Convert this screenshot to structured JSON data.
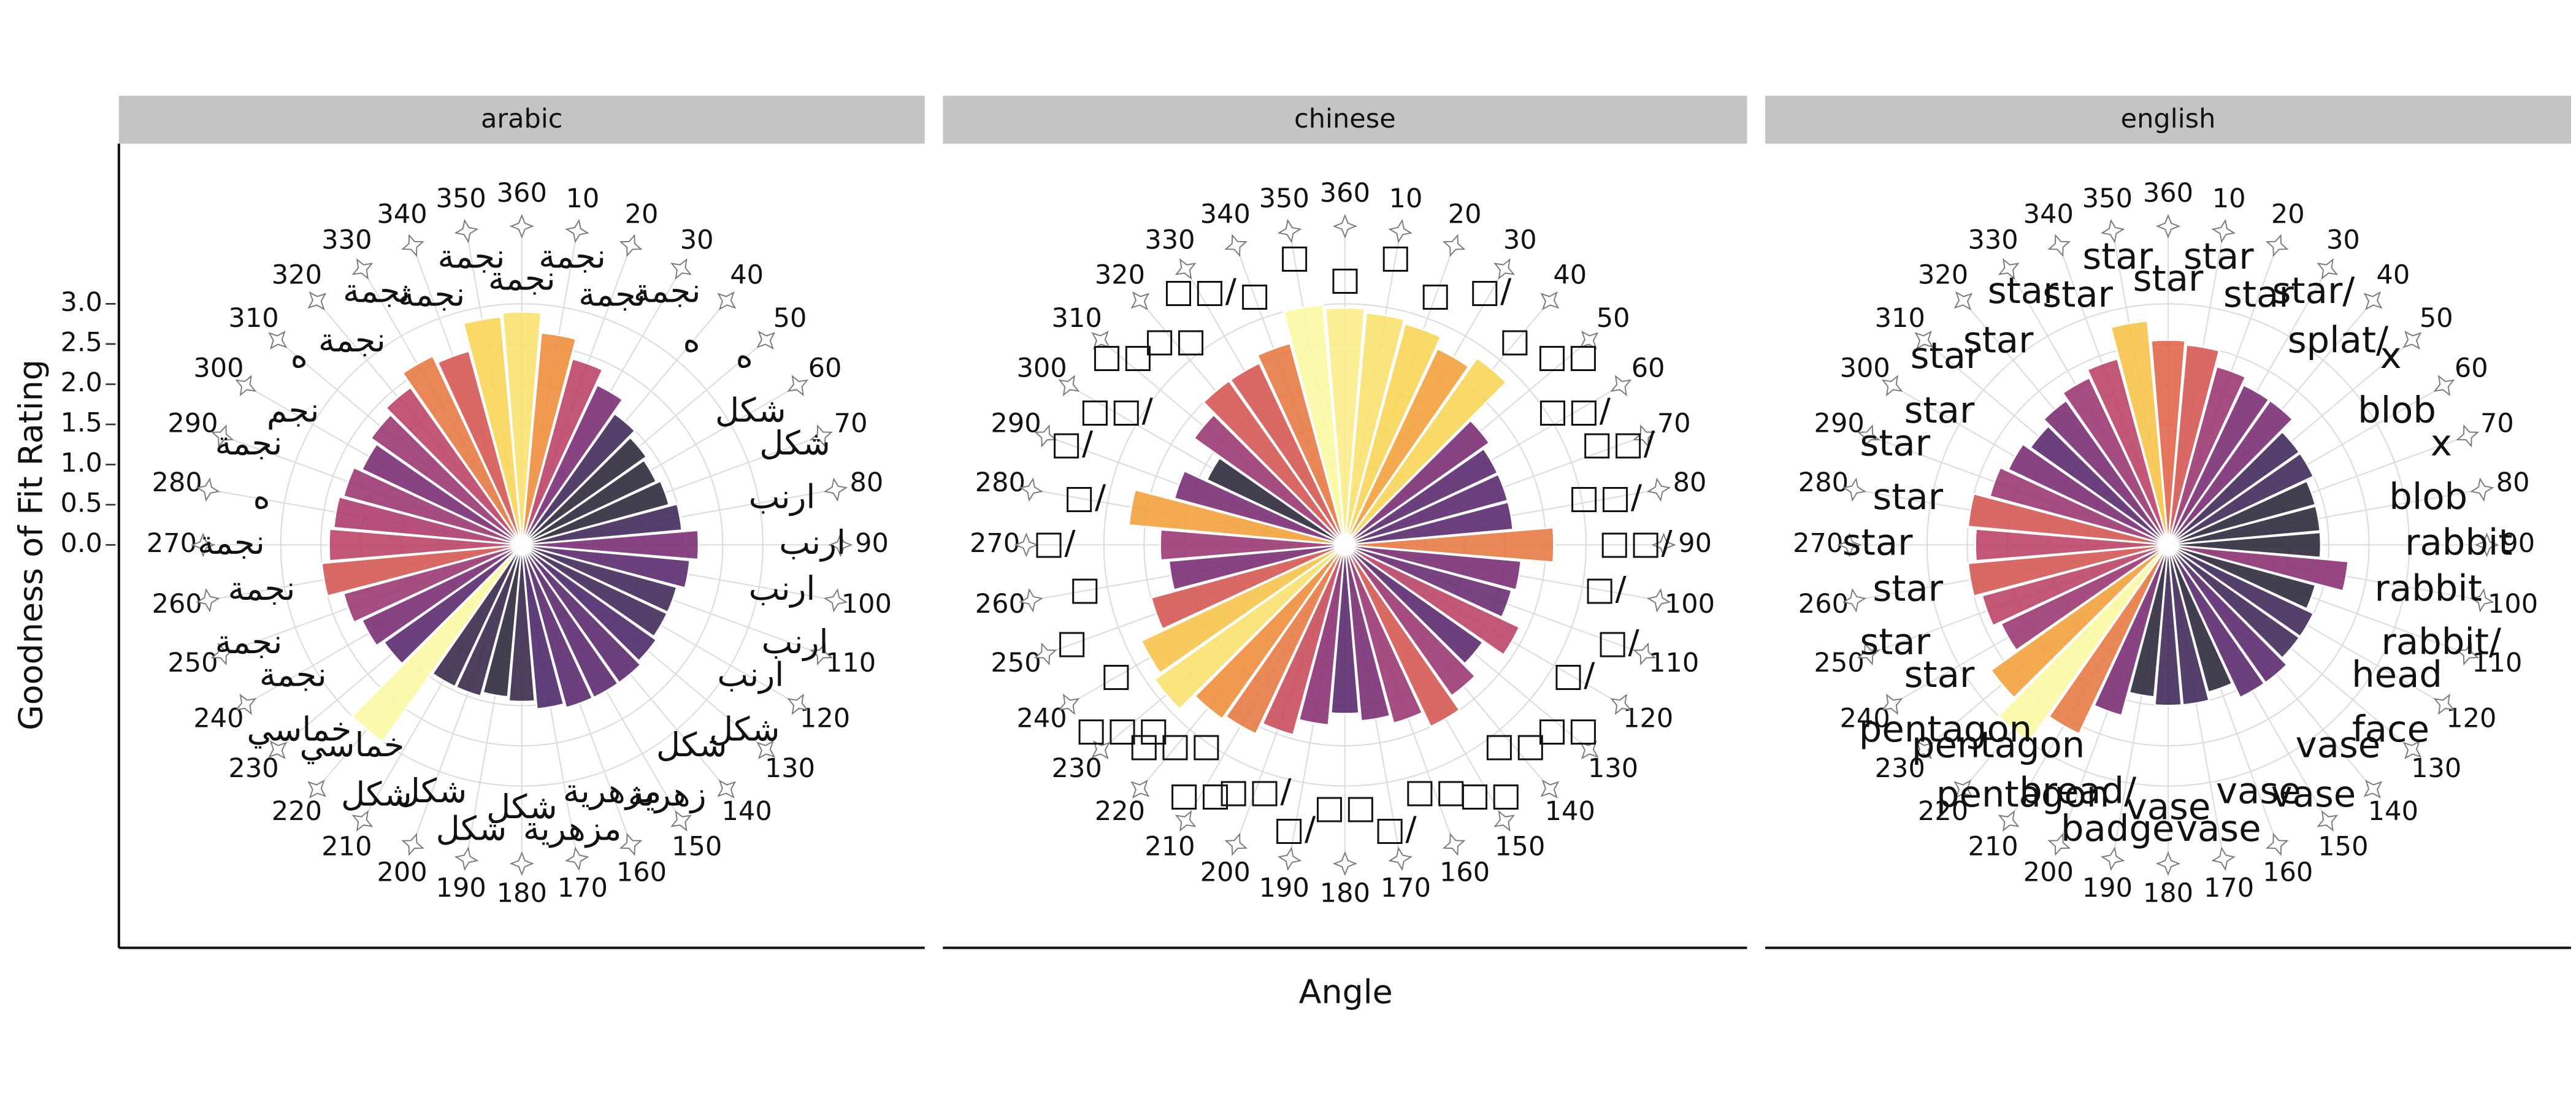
{
  "chart_data": {
    "type": "polar-bar",
    "y_label": "Goodness of Fit Rating",
    "x_label": "Angle",
    "ylim": [
      0,
      3
    ],
    "yticks": [
      {
        "value": 0,
        "label": "0.0"
      },
      {
        "value": 0.5,
        "label": "0.5"
      },
      {
        "value": 1,
        "label": "1.0"
      },
      {
        "value": 1.5,
        "label": "1.5"
      },
      {
        "value": 2,
        "label": "2.0"
      },
      {
        "value": 2.5,
        "label": "2.5"
      },
      {
        "value": 3,
        "label": "3.0"
      }
    ],
    "xlim": [
      0,
      360
    ],
    "xticks": [
      10,
      20,
      30,
      40,
      50,
      60,
      70,
      80,
      90,
      100,
      110,
      120,
      130,
      140,
      150,
      160,
      170,
      180,
      190,
      200,
      210,
      220,
      230,
      240,
      250,
      260,
      270,
      280,
      290,
      300,
      310,
      320,
      330,
      340,
      350,
      360
    ],
    "x": [
      10,
      20,
      30,
      40,
      50,
      60,
      70,
      80,
      90,
      100,
      110,
      120,
      130,
      140,
      150,
      160,
      170,
      180,
      190,
      200,
      210,
      220,
      230,
      240,
      250,
      260,
      270,
      280,
      290,
      300,
      310,
      320,
      330,
      340,
      350,
      360
    ],
    "grid": true,
    "color_domain": [
      1.9,
      3.0
    ],
    "color_stops": [
      "#2a2438",
      "#4a2468",
      "#7b2a73",
      "#b23a6a",
      "#dc5a48",
      "#f39a35",
      "#f8d24e",
      "#fbf8a0"
    ],
    "facets": [
      {
        "title": "arabic",
        "values": [
          2.65,
          2.4,
          2.2,
          2.0,
          1.9,
          1.85,
          1.9,
          2.0,
          2.2,
          2.1,
          2.0,
          2.0,
          2.05,
          2.1,
          2.1,
          2.1,
          2.05,
          1.95,
          1.9,
          1.95,
          1.95,
          3.0,
          2.1,
          2.2,
          2.3,
          2.5,
          2.4,
          2.35,
          2.3,
          2.2,
          2.3,
          2.4,
          2.6,
          2.5,
          2.85,
          2.9
        ],
        "labels": [
          "نجمة",
          "نجمة",
          "نجمة",
          "ه",
          "ه",
          "شكل",
          "شكل",
          "ارنب",
          "ارنب",
          "ارنب",
          "ارنب",
          "ارنب",
          "شكل",
          "شكل",
          "زهرية",
          "مزهرية",
          "مزهرية",
          "شكل",
          "شكل",
          "شكل",
          "شكل",
          "خماسي",
          "خماسي",
          "نجمة",
          "نجمة",
          "نجمة",
          "نجمة",
          "ه",
          "نجمة",
          "نجم",
          "ه",
          "نجمة",
          "نجمة",
          "نجمة",
          "نجمة",
          "نجمة"
        ]
      },
      {
        "title": "chinese",
        "values": [
          2.9,
          2.85,
          2.7,
          2.85,
          2.2,
          2.1,
          2.1,
          2.1,
          2.6,
          2.2,
          2.15,
          2.4,
          2.1,
          2.3,
          2.5,
          2.3,
          2.2,
          2.1,
          2.25,
          2.45,
          2.6,
          2.65,
          2.9,
          2.8,
          2.5,
          2.2,
          2.3,
          2.7,
          2.2,
          1.9,
          2.3,
          2.5,
          2.5,
          2.6,
          3.0,
          2.95
        ],
        "labels": [
          "□",
          "□",
          "□/",
          "□",
          "□□",
          "□□/",
          "□□/",
          "□□/",
          "□□/",
          "□/",
          "□/",
          "□/",
          "□□",
          "□□",
          "□□",
          "□□",
          "□/",
          "□□",
          "□/",
          "□□/",
          "□□",
          "□□□",
          "□□□",
          "□",
          "□",
          "□",
          "□/",
          "□/",
          "□/",
          "□□/",
          "□□",
          "□□",
          "□□/",
          "□",
          "□",
          "□"
        ]
      },
      {
        "title": "english",
        "values": [
          2.5,
          2.3,
          2.2,
          2.2,
          2.0,
          2.0,
          1.9,
          1.9,
          1.9,
          2.25,
          1.9,
          2.0,
          2.0,
          2.1,
          2.1,
          1.9,
          2.0,
          2.0,
          1.9,
          2.2,
          2.6,
          3.0,
          2.7,
          2.3,
          2.4,
          2.5,
          2.4,
          2.5,
          2.3,
          2.2,
          2.1,
          2.2,
          2.3,
          2.4,
          2.8,
          2.55
        ],
        "labels": [
          "star",
          "star",
          "star/",
          "splat/",
          "x",
          "blob",
          "x",
          "blob",
          "rabbit",
          "rabbit",
          "rabbit/",
          "head",
          "face",
          "vase",
          "vase",
          "vase",
          "vase",
          "vase",
          "badge",
          "bread/",
          "pentagon",
          "pentagon",
          "pentagon",
          "star",
          "star",
          "star",
          "star",
          "star",
          "star",
          "star",
          "star",
          "star",
          "star",
          "star",
          "star",
          "star"
        ]
      }
    ]
  }
}
